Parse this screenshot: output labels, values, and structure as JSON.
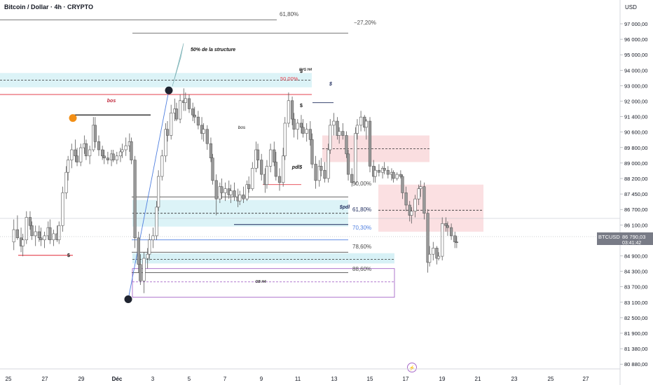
{
  "header": {
    "symbol_title": "Bitcoin / Dollar · 4h · CRYPTO",
    "currency": "USD"
  },
  "price_tag": {
    "symbol": "BTCUSD",
    "price": "86 790,03",
    "countdown": "03:41:42",
    "color": "#707070"
  },
  "colors": {
    "up": "#ffffff",
    "down": "#9a9a9a",
    "wick": "#5a5a5a",
    "zone_blue": "#cdeef4",
    "zone_red": "#f9d6d8",
    "red_line": "#e5404d",
    "fib_blue": "#4f7fe0",
    "ob_purple": "#a769c9",
    "swing_dot": "#1f2430",
    "orange_dot": "#f28f16"
  },
  "chart_data": {
    "type": "candlestick",
    "title": "Bitcoin / Dollar · 4h · CRYPTO",
    "ylim": [
      80600,
      98000
    ],
    "ylabel": "USD",
    "y_ticks": [
      "97 000,00",
      "96 000,00",
      "95 000,00",
      "94 000,00",
      "93 000,00",
      "92 000,00",
      "91 400,00",
      "90 600,00",
      "89 800,00",
      "89 000,00",
      "88 200,00",
      "87 450,00",
      "86 700,00",
      "86 100,00",
      "85 500,00",
      "84 900,00",
      "84 300,00",
      "83 700,00",
      "83 100,00",
      "82 500,00",
      "81 900,00",
      "81 380,00",
      "80 880,00"
    ],
    "x_ticks": [
      "25",
      "27",
      "29",
      "Déc",
      "3",
      "5",
      "7",
      "9",
      "11",
      "13",
      "15",
      "17",
      "19",
      "21",
      "23",
      "25",
      "27"
    ],
    "candles": [
      {
        "d": 24.3,
        "o": 86800,
        "h": 87900,
        "l": 86400,
        "c": 87400
      },
      {
        "d": 24.5,
        "o": 87400,
        "h": 88100,
        "l": 86900,
        "c": 87000
      },
      {
        "d": 24.7,
        "o": 87000,
        "h": 87500,
        "l": 86300,
        "c": 86600
      },
      {
        "d": 24.8,
        "o": 86600,
        "h": 87200,
        "l": 86100,
        "c": 86900
      },
      {
        "d": 25.0,
        "o": 86900,
        "h": 88300,
        "l": 86700,
        "c": 88000
      },
      {
        "d": 25.2,
        "o": 88000,
        "h": 88300,
        "l": 87400,
        "c": 87600
      },
      {
        "d": 25.3,
        "o": 87600,
        "h": 87800,
        "l": 86900,
        "c": 87100
      },
      {
        "d": 25.5,
        "o": 87100,
        "h": 87600,
        "l": 86600,
        "c": 87300
      },
      {
        "d": 25.7,
        "o": 87300,
        "h": 87600,
        "l": 86800,
        "c": 87000
      },
      {
        "d": 25.8,
        "o": 87000,
        "h": 87500,
        "l": 86600,
        "c": 86900
      },
      {
        "d": 26.0,
        "o": 86900,
        "h": 87300,
        "l": 86500,
        "c": 87100
      },
      {
        "d": 26.2,
        "o": 87100,
        "h": 87800,
        "l": 86900,
        "c": 87500
      },
      {
        "d": 26.3,
        "o": 87500,
        "h": 87900,
        "l": 86700,
        "c": 86900
      },
      {
        "d": 26.5,
        "o": 86900,
        "h": 87400,
        "l": 86600,
        "c": 87200
      },
      {
        "d": 26.7,
        "o": 87200,
        "h": 87600,
        "l": 86800,
        "c": 86900
      },
      {
        "d": 26.8,
        "o": 86900,
        "h": 87800,
        "l": 86700,
        "c": 87600
      },
      {
        "d": 27.0,
        "o": 87600,
        "h": 89500,
        "l": 87300,
        "c": 89200
      },
      {
        "d": 27.2,
        "o": 89200,
        "h": 90500,
        "l": 88900,
        "c": 90200
      },
      {
        "d": 27.3,
        "o": 90200,
        "h": 91000,
        "l": 89800,
        "c": 90800
      },
      {
        "d": 27.5,
        "o": 90800,
        "h": 91600,
        "l": 90400,
        "c": 91300
      },
      {
        "d": 27.7,
        "o": 91300,
        "h": 91800,
        "l": 90700,
        "c": 91000
      },
      {
        "d": 27.8,
        "o": 91000,
        "h": 91400,
        "l": 90500,
        "c": 90700
      },
      {
        "d": 28.0,
        "o": 90700,
        "h": 91600,
        "l": 90500,
        "c": 91400
      },
      {
        "d": 28.2,
        "o": 91400,
        "h": 92000,
        "l": 91100,
        "c": 91600
      },
      {
        "d": 28.3,
        "o": 91600,
        "h": 91800,
        "l": 90800,
        "c": 91000
      },
      {
        "d": 28.5,
        "o": 91000,
        "h": 91500,
        "l": 90600,
        "c": 91300
      },
      {
        "d": 28.7,
        "o": 91300,
        "h": 92900,
        "l": 91200,
        "c": 92500
      },
      {
        "d": 28.8,
        "o": 92500,
        "h": 92900,
        "l": 91400,
        "c": 91700
      },
      {
        "d": 29.0,
        "o": 91700,
        "h": 92000,
        "l": 91000,
        "c": 91300
      },
      {
        "d": 29.2,
        "o": 91300,
        "h": 91500,
        "l": 90800,
        "c": 91000
      },
      {
        "d": 29.3,
        "o": 91000,
        "h": 91300,
        "l": 90600,
        "c": 90900
      },
      {
        "d": 29.5,
        "o": 90900,
        "h": 91200,
        "l": 90600,
        "c": 90800
      },
      {
        "d": 29.7,
        "o": 90800,
        "h": 91300,
        "l": 90500,
        "c": 91100
      },
      {
        "d": 29.8,
        "o": 91100,
        "h": 91300,
        "l": 90700,
        "c": 90800
      },
      {
        "d": 30.0,
        "o": 90800,
        "h": 91200,
        "l": 90600,
        "c": 91000
      },
      {
        "d": 30.2,
        "o": 91000,
        "h": 91400,
        "l": 90700,
        "c": 91200
      },
      {
        "d": 30.3,
        "o": 91200,
        "h": 91600,
        "l": 90900,
        "c": 91300
      },
      {
        "d": 30.5,
        "o": 91300,
        "h": 91900,
        "l": 91000,
        "c": 91500
      },
      {
        "d": 30.7,
        "o": 91500,
        "h": 92100,
        "l": 91200,
        "c": 91700
      },
      {
        "d": 30.8,
        "o": 91700,
        "h": 91900,
        "l": 90600,
        "c": 90800
      },
      {
        "d": 31.0,
        "o": 90800,
        "h": 91000,
        "l": 86500,
        "c": 87000
      },
      {
        "d": 31.2,
        "o": 87000,
        "h": 87300,
        "l": 85300,
        "c": 85700
      },
      {
        "d": 31.3,
        "o": 85700,
        "h": 86200,
        "l": 84700,
        "c": 84900
      },
      {
        "d": 31.5,
        "o": 84900,
        "h": 86300,
        "l": 84300,
        "c": 86000
      },
      {
        "d": 31.7,
        "o": 86000,
        "h": 86500,
        "l": 85500,
        "c": 86200
      },
      {
        "d": 31.8,
        "o": 86200,
        "h": 87200,
        "l": 85900,
        "c": 86900
      },
      {
        "d": 32.0,
        "o": 86900,
        "h": 87500,
        "l": 86500,
        "c": 87100
      },
      {
        "d": 32.2,
        "o": 87100,
        "h": 88800,
        "l": 86900,
        "c": 88500
      },
      {
        "d": 32.3,
        "o": 88500,
        "h": 90300,
        "l": 88300,
        "c": 90000
      },
      {
        "d": 32.5,
        "o": 90000,
        "h": 91300,
        "l": 89800,
        "c": 91000
      },
      {
        "d": 32.7,
        "o": 91000,
        "h": 92600,
        "l": 90700,
        "c": 92300
      },
      {
        "d": 32.8,
        "o": 92300,
        "h": 92700,
        "l": 91700,
        "c": 92000
      },
      {
        "d": 33.0,
        "o": 92000,
        "h": 93500,
        "l": 91800,
        "c": 93100
      },
      {
        "d": 33.2,
        "o": 93100,
        "h": 93800,
        "l": 92700,
        "c": 93300
      },
      {
        "d": 33.3,
        "o": 93300,
        "h": 93600,
        "l": 92700,
        "c": 92800
      },
      {
        "d": 33.5,
        "o": 92800,
        "h": 94000,
        "l": 92600,
        "c": 93700
      },
      {
        "d": 33.7,
        "o": 93700,
        "h": 94300,
        "l": 93200,
        "c": 93600
      },
      {
        "d": 33.8,
        "o": 93600,
        "h": 94100,
        "l": 93200,
        "c": 93800
      },
      {
        "d": 34.0,
        "o": 93800,
        "h": 94000,
        "l": 93100,
        "c": 93300
      },
      {
        "d": 34.2,
        "o": 93300,
        "h": 93600,
        "l": 92700,
        "c": 93000
      },
      {
        "d": 34.3,
        "o": 93000,
        "h": 93400,
        "l": 92600,
        "c": 92900
      },
      {
        "d": 34.5,
        "o": 92900,
        "h": 93200,
        "l": 92300,
        "c": 92500
      },
      {
        "d": 34.7,
        "o": 92500,
        "h": 92900,
        "l": 91800,
        "c": 92100
      },
      {
        "d": 34.8,
        "o": 92100,
        "h": 92600,
        "l": 91700,
        "c": 92300
      },
      {
        "d": 35.0,
        "o": 92300,
        "h": 92500,
        "l": 91300,
        "c": 91600
      },
      {
        "d": 35.2,
        "o": 91600,
        "h": 91900,
        "l": 90700,
        "c": 90900
      },
      {
        "d": 35.3,
        "o": 90900,
        "h": 91100,
        "l": 89600,
        "c": 89800
      },
      {
        "d": 35.5,
        "o": 89800,
        "h": 90100,
        "l": 88100,
        "c": 88900
      },
      {
        "d": 35.7,
        "o": 88900,
        "h": 89700,
        "l": 88700,
        "c": 89500
      },
      {
        "d": 35.8,
        "o": 89500,
        "h": 89900,
        "l": 88900,
        "c": 89200
      },
      {
        "d": 36.0,
        "o": 89200,
        "h": 89700,
        "l": 88800,
        "c": 89400
      },
      {
        "d": 36.2,
        "o": 89400,
        "h": 89800,
        "l": 88900,
        "c": 89100
      },
      {
        "d": 36.3,
        "o": 89100,
        "h": 89600,
        "l": 88700,
        "c": 89300
      },
      {
        "d": 36.5,
        "o": 89300,
        "h": 89700,
        "l": 88800,
        "c": 89000
      },
      {
        "d": 36.7,
        "o": 89000,
        "h": 89400,
        "l": 88500,
        "c": 88800
      },
      {
        "d": 36.8,
        "o": 88800,
        "h": 89300,
        "l": 88600,
        "c": 89100
      },
      {
        "d": 37.0,
        "o": 89100,
        "h": 89500,
        "l": 88700,
        "c": 88900
      },
      {
        "d": 37.2,
        "o": 88900,
        "h": 89800,
        "l": 88800,
        "c": 89600
      },
      {
        "d": 37.3,
        "o": 89600,
        "h": 90000,
        "l": 89200,
        "c": 89400
      },
      {
        "d": 37.5,
        "o": 89400,
        "h": 90700,
        "l": 89300,
        "c": 90400
      },
      {
        "d": 37.7,
        "o": 90400,
        "h": 91700,
        "l": 90200,
        "c": 91300
      },
      {
        "d": 37.8,
        "o": 91300,
        "h": 91600,
        "l": 90400,
        "c": 90800
      },
      {
        "d": 38.0,
        "o": 90800,
        "h": 91100,
        "l": 89800,
        "c": 90100
      },
      {
        "d": 38.2,
        "o": 90100,
        "h": 90400,
        "l": 89200,
        "c": 89600
      },
      {
        "d": 38.3,
        "o": 89600,
        "h": 90800,
        "l": 89400,
        "c": 90500
      },
      {
        "d": 38.5,
        "o": 90500,
        "h": 91600,
        "l": 90200,
        "c": 91300
      },
      {
        "d": 38.7,
        "o": 91300,
        "h": 91700,
        "l": 90500,
        "c": 90700
      },
      {
        "d": 38.8,
        "o": 90700,
        "h": 91200,
        "l": 89800,
        "c": 90000
      },
      {
        "d": 39.0,
        "o": 90000,
        "h": 90400,
        "l": 89300,
        "c": 89700
      },
      {
        "d": 39.2,
        "o": 89700,
        "h": 91400,
        "l": 89500,
        "c": 91000
      },
      {
        "d": 39.3,
        "o": 91000,
        "h": 92900,
        "l": 90800,
        "c": 92600
      },
      {
        "d": 39.5,
        "o": 92600,
        "h": 94100,
        "l": 92400,
        "c": 93700
      },
      {
        "d": 39.7,
        "o": 93700,
        "h": 93900,
        "l": 92500,
        "c": 92800
      },
      {
        "d": 39.8,
        "o": 92800,
        "h": 93100,
        "l": 91900,
        "c": 92300
      },
      {
        "d": 40.0,
        "o": 92300,
        "h": 92800,
        "l": 91800,
        "c": 92600
      },
      {
        "d": 40.2,
        "o": 92600,
        "h": 93000,
        "l": 92100,
        "c": 92400
      },
      {
        "d": 40.3,
        "o": 92400,
        "h": 92800,
        "l": 91900,
        "c": 92100
      },
      {
        "d": 40.5,
        "o": 92100,
        "h": 92600,
        "l": 91700,
        "c": 92300
      },
      {
        "d": 40.7,
        "o": 92300,
        "h": 92700,
        "l": 91500,
        "c": 91800
      },
      {
        "d": 40.8,
        "o": 91800,
        "h": 92100,
        "l": 90400,
        "c": 90600
      },
      {
        "d": 41.0,
        "o": 90600,
        "h": 91000,
        "l": 89400,
        "c": 89800
      },
      {
        "d": 41.2,
        "o": 89800,
        "h": 90800,
        "l": 89500,
        "c": 90500
      },
      {
        "d": 41.3,
        "o": 90500,
        "h": 90900,
        "l": 90000,
        "c": 90300
      },
      {
        "d": 41.5,
        "o": 90300,
        "h": 90700,
        "l": 89700,
        "c": 89900
      },
      {
        "d": 41.7,
        "o": 89900,
        "h": 91600,
        "l": 89700,
        "c": 91300
      },
      {
        "d": 41.8,
        "o": 91300,
        "h": 92800,
        "l": 91100,
        "c": 92500
      },
      {
        "d": 42.0,
        "o": 92500,
        "h": 93100,
        "l": 92000,
        "c": 92700
      },
      {
        "d": 42.2,
        "o": 92700,
        "h": 92900,
        "l": 91800,
        "c": 92000
      },
      {
        "d": 42.3,
        "o": 92000,
        "h": 92400,
        "l": 91600,
        "c": 92200
      },
      {
        "d": 42.5,
        "o": 92200,
        "h": 92600,
        "l": 91800,
        "c": 92000
      },
      {
        "d": 42.7,
        "o": 92000,
        "h": 92200,
        "l": 90900,
        "c": 91100
      },
      {
        "d": 42.8,
        "o": 91100,
        "h": 91300,
        "l": 89800,
        "c": 90100
      },
      {
        "d": 43.0,
        "o": 90100,
        "h": 90400,
        "l": 89500,
        "c": 89700
      },
      {
        "d": 43.2,
        "o": 89700,
        "h": 92400,
        "l": 89600,
        "c": 92100
      },
      {
        "d": 43.3,
        "o": 92100,
        "h": 92800,
        "l": 91800,
        "c": 92500
      },
      {
        "d": 43.5,
        "o": 92500,
        "h": 93200,
        "l": 92200,
        "c": 92900
      },
      {
        "d": 43.7,
        "o": 92900,
        "h": 93000,
        "l": 92200,
        "c": 92400
      },
      {
        "d": 43.8,
        "o": 92400,
        "h": 92800,
        "l": 91800,
        "c": 92700
      },
      {
        "d": 44.0,
        "o": 92700,
        "h": 92900,
        "l": 90200,
        "c": 90500
      },
      {
        "d": 44.2,
        "o": 90500,
        "h": 90800,
        "l": 89700,
        "c": 90000
      },
      {
        "d": 44.3,
        "o": 90000,
        "h": 90500,
        "l": 89700,
        "c": 90300
      },
      {
        "d": 44.5,
        "o": 90300,
        "h": 90600,
        "l": 90000,
        "c": 90200
      },
      {
        "d": 44.7,
        "o": 90200,
        "h": 90500,
        "l": 89900,
        "c": 90400
      },
      {
        "d": 44.8,
        "o": 90400,
        "h": 90700,
        "l": 90100,
        "c": 90300
      },
      {
        "d": 45.0,
        "o": 90300,
        "h": 90500,
        "l": 89900,
        "c": 90100
      },
      {
        "d": 45.2,
        "o": 90100,
        "h": 90400,
        "l": 89800,
        "c": 90200
      },
      {
        "d": 45.3,
        "o": 90200,
        "h": 90300,
        "l": 89700,
        "c": 89900
      },
      {
        "d": 45.5,
        "o": 89900,
        "h": 90200,
        "l": 89800,
        "c": 90100
      },
      {
        "d": 45.7,
        "o": 90100,
        "h": 90300,
        "l": 89900,
        "c": 90000
      },
      {
        "d": 45.8,
        "o": 90000,
        "h": 90100,
        "l": 88900,
        "c": 89200
      },
      {
        "d": 46.0,
        "o": 89200,
        "h": 89500,
        "l": 88300,
        "c": 88600
      },
      {
        "d": 46.2,
        "o": 88600,
        "h": 88800,
        "l": 87800,
        "c": 88100
      },
      {
        "d": 46.3,
        "o": 88100,
        "h": 88500,
        "l": 87700,
        "c": 88300
      },
      {
        "d": 46.5,
        "o": 88300,
        "h": 89100,
        "l": 88000,
        "c": 88900
      },
      {
        "d": 46.7,
        "o": 88900,
        "h": 89600,
        "l": 88600,
        "c": 89400
      },
      {
        "d": 46.8,
        "o": 89400,
        "h": 89800,
        "l": 89000,
        "c": 89500
      },
      {
        "d": 47.0,
        "o": 89500,
        "h": 89700,
        "l": 87900,
        "c": 88200
      },
      {
        "d": 47.2,
        "o": 88200,
        "h": 88400,
        "l": 85300,
        "c": 85800
      },
      {
        "d": 47.3,
        "o": 85800,
        "h": 86600,
        "l": 85600,
        "c": 86200
      },
      {
        "d": 47.5,
        "o": 86200,
        "h": 86800,
        "l": 85900,
        "c": 86500
      },
      {
        "d": 47.7,
        "o": 86500,
        "h": 86600,
        "l": 85700,
        "c": 86000
      },
      {
        "d": 47.8,
        "o": 86000,
        "h": 86300,
        "l": 85900,
        "c": 86100
      },
      {
        "d": 48.0,
        "o": 86100,
        "h": 88000,
        "l": 85900,
        "c": 87700
      },
      {
        "d": 48.2,
        "o": 87700,
        "h": 88000,
        "l": 87300,
        "c": 87600
      },
      {
        "d": 48.3,
        "o": 87600,
        "h": 87800,
        "l": 87100,
        "c": 87500
      },
      {
        "d": 48.5,
        "o": 87500,
        "h": 87700,
        "l": 86900,
        "c": 87100
      },
      {
        "d": 48.7,
        "o": 87100,
        "h": 87300,
        "l": 86500,
        "c": 86800
      },
      {
        "d": 48.8,
        "o": 86800,
        "h": 87100,
        "l": 86500,
        "c": 86790
      }
    ],
    "annotations": {
      "fib_levels": [
        {
          "label": "61,80%",
          "price": 97650,
          "color": "#4a4a4a"
        },
        {
          "label": "−27,20%",
          "price": 97000,
          "color": "#4a4a4a"
        },
        {
          "label": "50,00%",
          "price": 89000,
          "color": "#4a4a4a"
        },
        {
          "label": "61,80%",
          "price": 88000,
          "color": "#1c2a5c"
        },
        {
          "label": "70,30%",
          "price": 87200,
          "color": "#4f7fe0"
        },
        {
          "label": "78,60%",
          "price": 86300,
          "color": "#4a4a4a"
        },
        {
          "label": "88,60%",
          "price": 85300,
          "color": "#4a4a4a"
        }
      ],
      "labels": {
        "structure": "50% de la structure",
        "bos1": "bos",
        "bos2": "bos",
        "fvg": "FVG H4",
        "fifty_red": "50,00%",
        "dollar1": "$",
        "dollar2": "$",
        "dollar3": "$",
        "dollar4": "$",
        "pdl": "pdl$",
        "spdl": "$pdl",
        "ob": "OB H4",
        "event": "⚡"
      }
    }
  }
}
